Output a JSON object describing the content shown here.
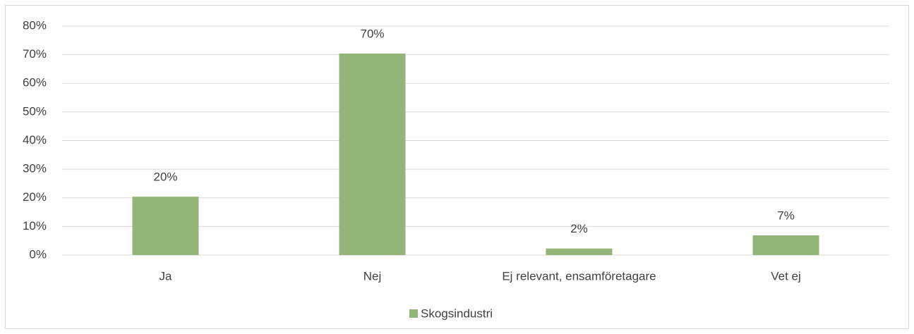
{
  "chart_data": {
    "type": "bar",
    "categories": [
      "Ja",
      "Nej",
      "Ej relevant, ensamföretagare",
      "Vet ej"
    ],
    "series": [
      {
        "name": "Skogsindustri",
        "color": "#93b577",
        "values": [
          20.4,
          70.4,
          2.3,
          6.9
        ],
        "value_labels": [
          "20%",
          "70%",
          "2%",
          "7%"
        ]
      }
    ],
    "ylim": [
      0,
      80
    ],
    "yticks": [
      {
        "value": 0,
        "label": "0%"
      },
      {
        "value": 10,
        "label": "10%"
      },
      {
        "value": 20,
        "label": "20%"
      },
      {
        "value": 30,
        "label": "30%"
      },
      {
        "value": 40,
        "label": "40%"
      },
      {
        "value": 50,
        "label": "50%"
      },
      {
        "value": 60,
        "label": "60%"
      },
      {
        "value": 70,
        "label": "70%"
      },
      {
        "value": 80,
        "label": "80%"
      }
    ],
    "grid": true,
    "legend": "bottom"
  }
}
